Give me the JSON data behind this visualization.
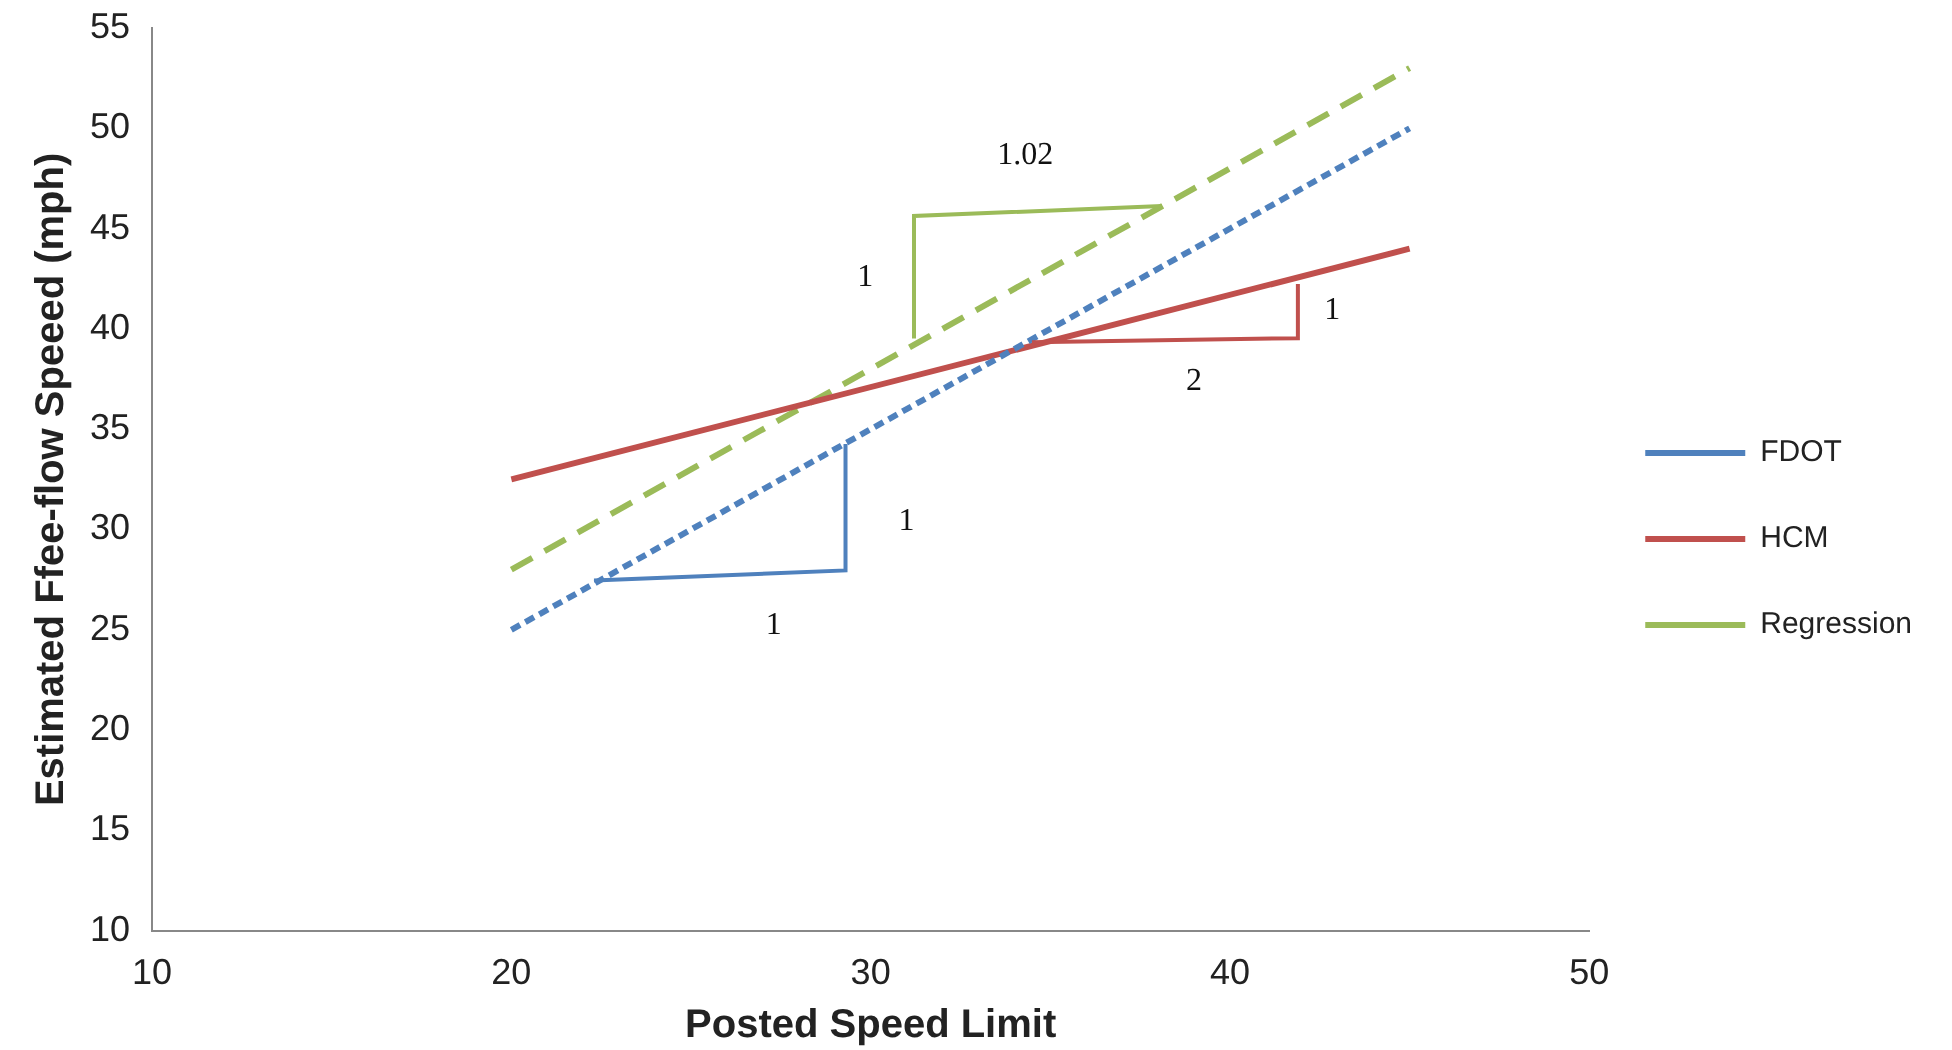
{
  "chart_data": {
    "type": "line",
    "xlabel": "Posted Speed Limit",
    "ylabel": "Estimated Ffee-flow Speeed (mph)",
    "x": [
      20,
      45
    ],
    "series": [
      {
        "name": "FDOT",
        "color": "#4f81bd",
        "values": [
          25,
          50
        ],
        "line_style": "dotted"
      },
      {
        "name": "HCM",
        "color": "#c0504d",
        "values": [
          32.5,
          44
        ],
        "line_style": "solid"
      },
      {
        "name": "Regression",
        "color": "#9bbb59",
        "values": [
          28,
          53
        ],
        "line_style": "dashed"
      }
    ],
    "xlim": [
      10,
      50
    ],
    "xticks": [
      10,
      20,
      30,
      40,
      50
    ],
    "ylim": [
      10,
      55
    ],
    "yticks": [
      10,
      15,
      20,
      25,
      30,
      35,
      40,
      45,
      50,
      55
    ],
    "grid": false,
    "legend": "right",
    "marker": "none",
    "annotations": [
      "1",
      "1",
      "1",
      "1.02",
      "2",
      {
        "text": "1",
        "x": 41.9,
        "y": 42.6
      }
    ]
  }
}
